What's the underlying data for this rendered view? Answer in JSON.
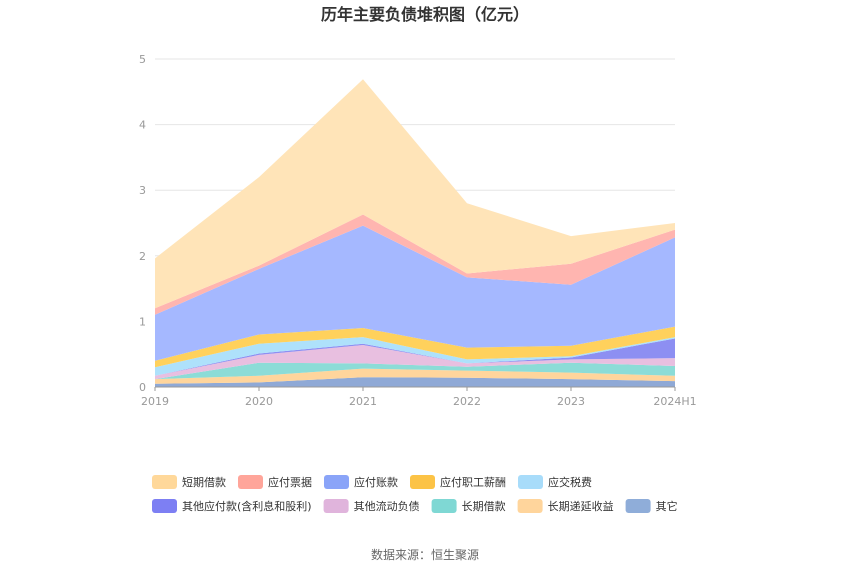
{
  "chart_data": {
    "type": "area",
    "title": "历年主要负债堆积图（亿元）",
    "categories": [
      "2019",
      "2020",
      "2021",
      "2022",
      "2023",
      "2024H1"
    ],
    "ylim": [
      0,
      5
    ],
    "yticks": [
      "0",
      "1",
      "2",
      "3",
      "4",
      "5"
    ],
    "grid": true,
    "stacked": true,
    "legend_position": "bottom",
    "series": [
      {
        "name": "其它",
        "color": "#8fa9d6",
        "values": [
          0.05,
          0.07,
          0.15,
          0.14,
          0.12,
          0.09
        ]
      },
      {
        "name": "长期递延收益",
        "color": "#ffd59c",
        "values": [
          0.07,
          0.1,
          0.13,
          0.11,
          0.1,
          0.08
        ]
      },
      {
        "name": "长期借款",
        "color": "#8cdcd7",
        "values": [
          0.0,
          0.2,
          0.08,
          0.06,
          0.15,
          0.15
        ]
      },
      {
        "name": "其他流动负债",
        "color": "#e8bfe0",
        "values": [
          0.05,
          0.12,
          0.28,
          0.05,
          0.05,
          0.12
        ]
      },
      {
        "name": "其他应付款(含利息和股利)",
        "color": "#8d8ff2",
        "values": [
          0.0,
          0.02,
          0.02,
          0.0,
          0.03,
          0.3
        ]
      },
      {
        "name": "应交税费",
        "color": "#aee1fb",
        "values": [
          0.13,
          0.15,
          0.1,
          0.06,
          0.02,
          0.02
        ]
      },
      {
        "name": "应付职工薪酬",
        "color": "#ffd15c",
        "values": [
          0.1,
          0.14,
          0.14,
          0.18,
          0.16,
          0.16
        ]
      },
      {
        "name": "应付账款",
        "color": "#a5b8ff",
        "values": [
          0.7,
          1.0,
          1.56,
          1.07,
          0.93,
          1.36
        ]
      },
      {
        "name": "应付票据",
        "color": "#ffb5b0",
        "values": [
          0.1,
          0.05,
          0.17,
          0.06,
          0.32,
          0.12
        ]
      },
      {
        "name": "短期借款",
        "color": "#ffe4b8",
        "values": [
          0.76,
          1.35,
          2.06,
          1.07,
          0.42,
          0.1
        ]
      }
    ],
    "legend": [
      {
        "name": "短期借款",
        "color": "#ffd89a"
      },
      {
        "name": "应付票据",
        "color": "#ffa59a"
      },
      {
        "name": "应付账款",
        "color": "#8aa4f8"
      },
      {
        "name": "应付职工薪酬",
        "color": "#fcc346"
      },
      {
        "name": "应交税费",
        "color": "#a8dcfa"
      },
      {
        "name": "其他应付款(含利息和股利)",
        "color": "#7d7ff3"
      },
      {
        "name": "其他流动负债",
        "color": "#e0b4dc"
      },
      {
        "name": "长期借款",
        "color": "#7fd8d4"
      },
      {
        "name": "长期递延收益",
        "color": "#ffd59c"
      },
      {
        "name": "其它",
        "color": "#8fadd9"
      }
    ],
    "source": "数据来源：恒生聚源"
  }
}
